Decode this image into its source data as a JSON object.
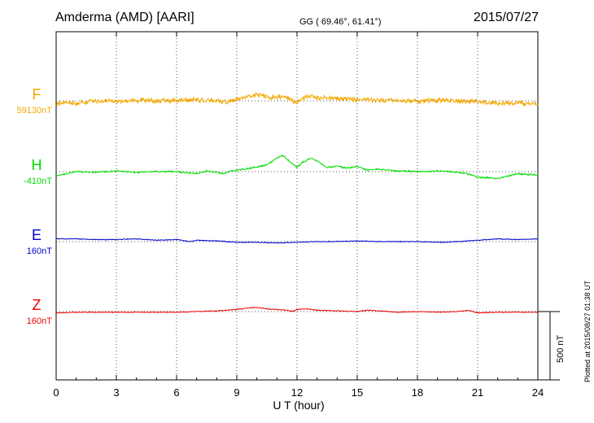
{
  "header": {
    "station": "Amderma (AMD)  [AARI]",
    "coords": "GG ( 69.46°,  61.41°)",
    "date": "2015/07/27"
  },
  "side_note": "Plotted at 2015/08/27 01:38 UT",
  "scale_label": "500 nT",
  "chart_data": {
    "type": "line",
    "xlabel": "U T (hour)",
    "xlim": [
      0,
      24
    ],
    "xticks": [
      0,
      3,
      6,
      9,
      12,
      15,
      18,
      21,
      24
    ],
    "xtick_labels": [
      "0",
      "3",
      "6",
      "9",
      "12",
      "15",
      "18",
      "21",
      "24"
    ],
    "grid": true,
    "scale_bar_nT": 500,
    "series": [
      {
        "name": "F",
        "baseline_label": "59130nT",
        "color": "#f5a800",
        "noise_nT": 18,
        "points": [
          [
            0,
            -20
          ],
          [
            0.5,
            -10
          ],
          [
            1,
            -15
          ],
          [
            2,
            0
          ],
          [
            3,
            -5
          ],
          [
            4,
            5
          ],
          [
            5,
            0
          ],
          [
            6,
            5
          ],
          [
            7,
            10
          ],
          [
            8,
            0
          ],
          [
            8.5,
            -10
          ],
          [
            9,
            10
          ],
          [
            9.5,
            30
          ],
          [
            10,
            45
          ],
          [
            10.5,
            30
          ],
          [
            11,
            25
          ],
          [
            11.3,
            35
          ],
          [
            11.6,
            15
          ],
          [
            12,
            -15
          ],
          [
            12.3,
            20
          ],
          [
            12.7,
            40
          ],
          [
            13,
            25
          ],
          [
            14,
            15
          ],
          [
            15,
            10
          ],
          [
            16,
            5
          ],
          [
            17,
            0
          ],
          [
            18,
            0
          ],
          [
            19,
            5
          ],
          [
            20,
            0
          ],
          [
            21,
            -5
          ],
          [
            22,
            -20
          ],
          [
            23,
            -15
          ],
          [
            24,
            -20
          ]
        ]
      },
      {
        "name": "H",
        "baseline_label": "-410nT",
        "color": "#00dd00",
        "noise_nT": 6,
        "points": [
          [
            0,
            -30
          ],
          [
            0.5,
            -15
          ],
          [
            1,
            0
          ],
          [
            2,
            -5
          ],
          [
            3,
            5
          ],
          [
            4,
            -5
          ],
          [
            5,
            0
          ],
          [
            6,
            0
          ],
          [
            7,
            -15
          ],
          [
            7.5,
            5
          ],
          [
            8,
            -5
          ],
          [
            8.3,
            -15
          ],
          [
            8.7,
            5
          ],
          [
            9,
            10
          ],
          [
            9.5,
            20
          ],
          [
            10,
            35
          ],
          [
            10.5,
            50
          ],
          [
            11,
            100
          ],
          [
            11.3,
            120
          ],
          [
            11.6,
            80
          ],
          [
            12,
            30
          ],
          [
            12.3,
            70
          ],
          [
            12.7,
            100
          ],
          [
            13,
            80
          ],
          [
            13.5,
            30
          ],
          [
            14,
            40
          ],
          [
            14.5,
            25
          ],
          [
            15,
            40
          ],
          [
            15.5,
            10
          ],
          [
            16,
            20
          ],
          [
            17,
            5
          ],
          [
            18,
            0
          ],
          [
            19,
            5
          ],
          [
            20,
            -5
          ],
          [
            20.5,
            -15
          ],
          [
            21,
            -40
          ],
          [
            22,
            -50
          ],
          [
            23,
            -15
          ],
          [
            24,
            -25
          ]
        ]
      },
      {
        "name": "E",
        "baseline_label": "160nT",
        "color": "#0000cc",
        "noise_nT": 3,
        "points": [
          [
            0,
            20
          ],
          [
            1,
            20
          ],
          [
            2,
            15
          ],
          [
            3,
            15
          ],
          [
            4,
            20
          ],
          [
            5,
            10
          ],
          [
            6,
            15
          ],
          [
            6.7,
            0
          ],
          [
            7,
            10
          ],
          [
            8,
            5
          ],
          [
            9,
            -5
          ],
          [
            10,
            -5
          ],
          [
            11,
            -10
          ],
          [
            12,
            -5
          ],
          [
            13,
            0
          ],
          [
            14,
            0
          ],
          [
            15,
            5
          ],
          [
            16,
            0
          ],
          [
            17,
            0
          ],
          [
            18,
            0
          ],
          [
            19,
            -5
          ],
          [
            20,
            0
          ],
          [
            21,
            10
          ],
          [
            22,
            20
          ],
          [
            23,
            15
          ],
          [
            24,
            20
          ]
        ]
      },
      {
        "name": "Z",
        "baseline_label": "160nT",
        "color": "#ee0000",
        "noise_nT": 3,
        "points": [
          [
            0,
            -10
          ],
          [
            1,
            -5
          ],
          [
            2,
            -5
          ],
          [
            3,
            -5
          ],
          [
            4,
            -5
          ],
          [
            5,
            -5
          ],
          [
            6,
            -5
          ],
          [
            7,
            0
          ],
          [
            8,
            5
          ],
          [
            8.5,
            10
          ],
          [
            9,
            15
          ],
          [
            9.5,
            25
          ],
          [
            10,
            30
          ],
          [
            10.5,
            20
          ],
          [
            11,
            15
          ],
          [
            11.5,
            10
          ],
          [
            11.8,
            0
          ],
          [
            12,
            15
          ],
          [
            12.5,
            20
          ],
          [
            13,
            10
          ],
          [
            14,
            5
          ],
          [
            15,
            0
          ],
          [
            15.5,
            10
          ],
          [
            16,
            5
          ],
          [
            17,
            -5
          ],
          [
            18,
            0
          ],
          [
            19,
            -5
          ],
          [
            20,
            0
          ],
          [
            20.5,
            10
          ],
          [
            21,
            -10
          ],
          [
            22,
            -5
          ],
          [
            23,
            -5
          ],
          [
            24,
            -5
          ]
        ]
      }
    ]
  }
}
